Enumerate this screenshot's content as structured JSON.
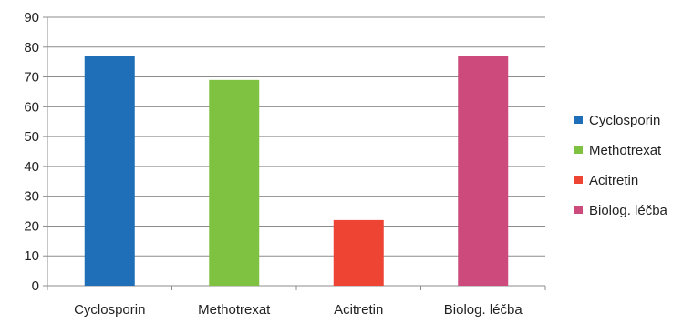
{
  "chart_data": {
    "type": "bar",
    "categories": [
      "Cyclosporin",
      "Methotrexat",
      "Acitretin",
      "Biolog. léčba"
    ],
    "values": [
      77,
      69,
      22,
      77
    ],
    "colors": [
      "#1f6fb8",
      "#7fc241",
      "#ee4433",
      "#cc4a7c"
    ],
    "ylim": [
      0,
      90
    ],
    "yticks": [
      0,
      10,
      20,
      30,
      40,
      50,
      60,
      70,
      80,
      90
    ],
    "grid": true,
    "legend": {
      "position": "right",
      "entries": [
        "Cyclosporin",
        "Methotrexat",
        "Acitretin",
        "Biolog. léčba"
      ]
    }
  }
}
